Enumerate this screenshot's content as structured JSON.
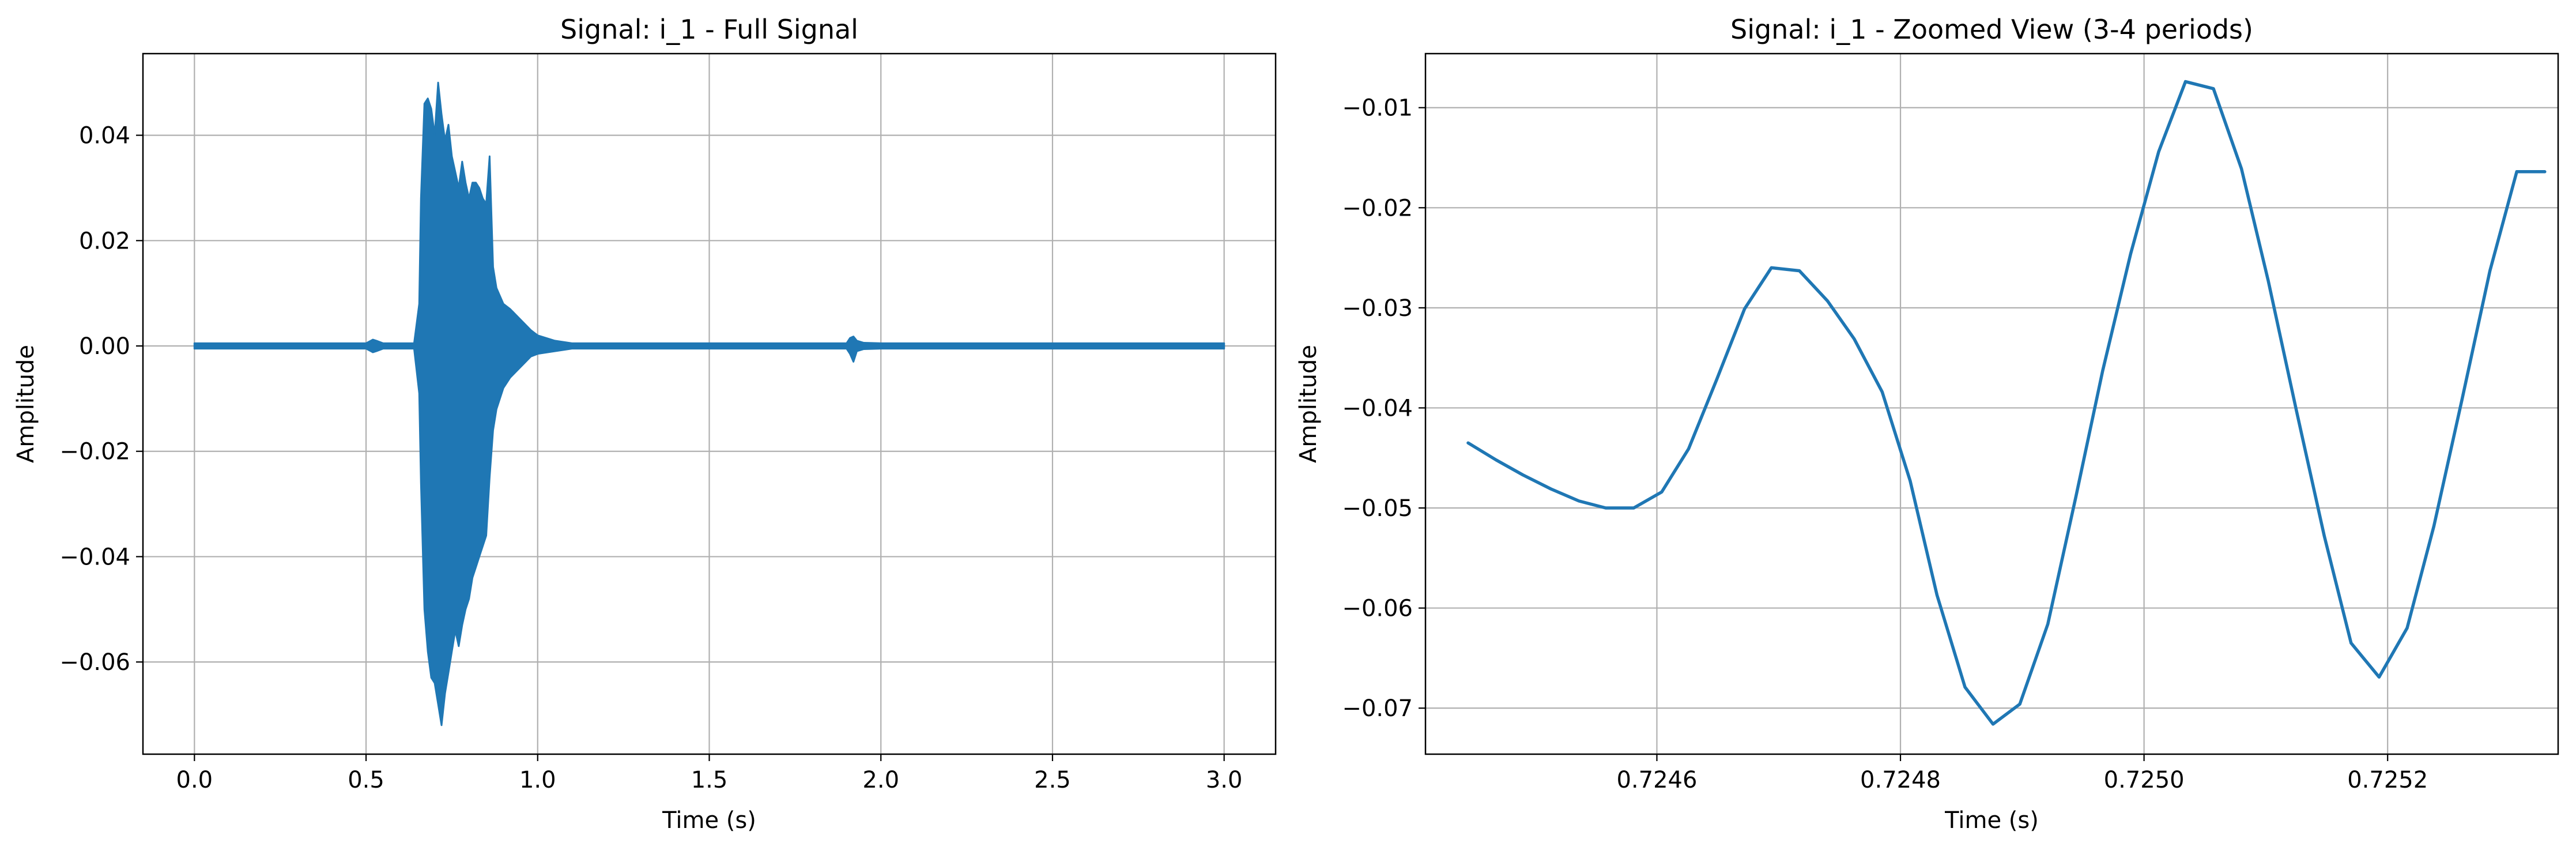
{
  "chart_data": [
    {
      "type": "line",
      "title": "Signal: i_1 - Full Signal",
      "xlabel": "Time (s)",
      "ylabel": "Amplitude",
      "xlim": [
        -0.15,
        3.15
      ],
      "ylim": [
        -0.0775,
        0.0555
      ],
      "xticks": [
        0.0,
        0.5,
        1.0,
        1.5,
        2.0,
        2.5,
        3.0
      ],
      "xtick_labels": [
        "0.0",
        "0.5",
        "1.0",
        "1.5",
        "2.0",
        "2.5",
        "3.0"
      ],
      "yticks": [
        -0.06,
        -0.04,
        -0.02,
        0.0,
        0.02,
        0.04
      ],
      "ytick_labels": [
        "−0.06",
        "−0.04",
        "−0.02",
        "0.00",
        "0.02",
        "0.04"
      ],
      "grid": true,
      "series": [
        {
          "color": "#1f77b4",
          "envelope": {
            "x": [
              0.0,
              0.5,
              0.52,
              0.53,
              0.55,
              0.64,
              0.655,
              0.66,
              0.67,
              0.68,
              0.69,
              0.7,
              0.71,
              0.72,
              0.73,
              0.74,
              0.75,
              0.76,
              0.77,
              0.78,
              0.79,
              0.8,
              0.81,
              0.82,
              0.83,
              0.84,
              0.85,
              0.86,
              0.87,
              0.88,
              0.9,
              0.92,
              0.95,
              0.98,
              1.0,
              1.05,
              1.1,
              1.5,
              1.9,
              1.91,
              1.92,
              1.93,
              1.95,
              2.0,
              2.5,
              3.0
            ],
            "upper": [
              0.0005,
              0.0005,
              0.0012,
              0.001,
              0.0005,
              0.0005,
              0.008,
              0.028,
              0.046,
              0.047,
              0.045,
              0.04,
              0.05,
              0.044,
              0.039,
              0.042,
              0.036,
              0.033,
              0.03,
              0.035,
              0.031,
              0.028,
              0.031,
              0.031,
              0.03,
              0.028,
              0.027,
              0.036,
              0.015,
              0.011,
              0.008,
              0.007,
              0.005,
              0.003,
              0.002,
              0.001,
              0.0005,
              0.0005,
              0.0005,
              0.0015,
              0.0018,
              0.001,
              0.0006,
              0.0005,
              0.0005,
              0.0005
            ],
            "lower": [
              -0.0005,
              -0.0005,
              -0.0012,
              -0.001,
              -0.0005,
              -0.0005,
              -0.009,
              -0.026,
              -0.05,
              -0.058,
              -0.063,
              -0.064,
              -0.068,
              -0.072,
              -0.066,
              -0.062,
              -0.058,
              -0.054,
              -0.057,
              -0.053,
              -0.05,
              -0.048,
              -0.044,
              -0.042,
              -0.04,
              -0.038,
              -0.036,
              -0.025,
              -0.016,
              -0.012,
              -0.008,
              -0.006,
              -0.004,
              -0.002,
              -0.0015,
              -0.001,
              -0.0005,
              -0.0005,
              -0.0005,
              -0.0015,
              -0.003,
              -0.001,
              -0.0006,
              -0.0005,
              -0.0005,
              -0.0005
            ]
          }
        }
      ]
    },
    {
      "type": "line",
      "title": "Signal: i_1 - Zoomed View (3-4 periods)",
      "xlabel": "Time (s)",
      "ylabel": "Amplitude",
      "xlim": [
        0.72441,
        0.72534
      ],
      "ylim": [
        -0.0746,
        -0.0046
      ],
      "xticks": [
        0.7246,
        0.7248,
        0.725,
        0.7252
      ],
      "xtick_labels": [
        "0.7246",
        "0.7248",
        "0.7250",
        "0.7252"
      ],
      "yticks": [
        -0.07,
        -0.06,
        -0.05,
        -0.04,
        -0.03,
        -0.02,
        -0.01
      ],
      "ytick_labels": [
        "−0.07",
        "−0.06",
        "−0.05",
        "−0.04",
        "−0.03",
        "−0.02",
        "−0.01"
      ],
      "grid": true,
      "series": [
        {
          "color": "#1f77b4",
          "x": [
            0.724445,
            0.724468,
            0.72449,
            0.724513,
            0.724536,
            0.724558,
            0.724581,
            0.724604,
            0.724626,
            0.724649,
            0.724672,
            0.724694,
            0.724717,
            0.72474,
            0.724762,
            0.724785,
            0.724808,
            0.72483,
            0.724853,
            0.724876,
            0.724898,
            0.724921,
            0.724944,
            0.724966,
            0.724989,
            0.725012,
            0.725034,
            0.725057,
            0.72508,
            0.725102,
            0.725125,
            0.725148,
            0.72517,
            0.725193,
            0.725216,
            0.725238,
            0.725261,
            0.725284,
            0.725306,
            0.725329
          ],
          "y": [
            -0.0435,
            -0.0452,
            -0.0467,
            -0.0481,
            -0.0493,
            -0.05,
            -0.05,
            -0.0484,
            -0.0441,
            -0.0372,
            -0.0301,
            -0.026,
            -0.0263,
            -0.0293,
            -0.0331,
            -0.0384,
            -0.0473,
            -0.0587,
            -0.0679,
            -0.0716,
            -0.0696,
            -0.0616,
            -0.0489,
            -0.0363,
            -0.0246,
            -0.0144,
            -0.0074,
            -0.0081,
            -0.0161,
            -0.0273,
            -0.0402,
            -0.0528,
            -0.0635,
            -0.0669,
            -0.062,
            -0.0518,
            -0.0392,
            -0.0263,
            -0.0164,
            -0.0164
          ]
        }
      ]
    }
  ]
}
